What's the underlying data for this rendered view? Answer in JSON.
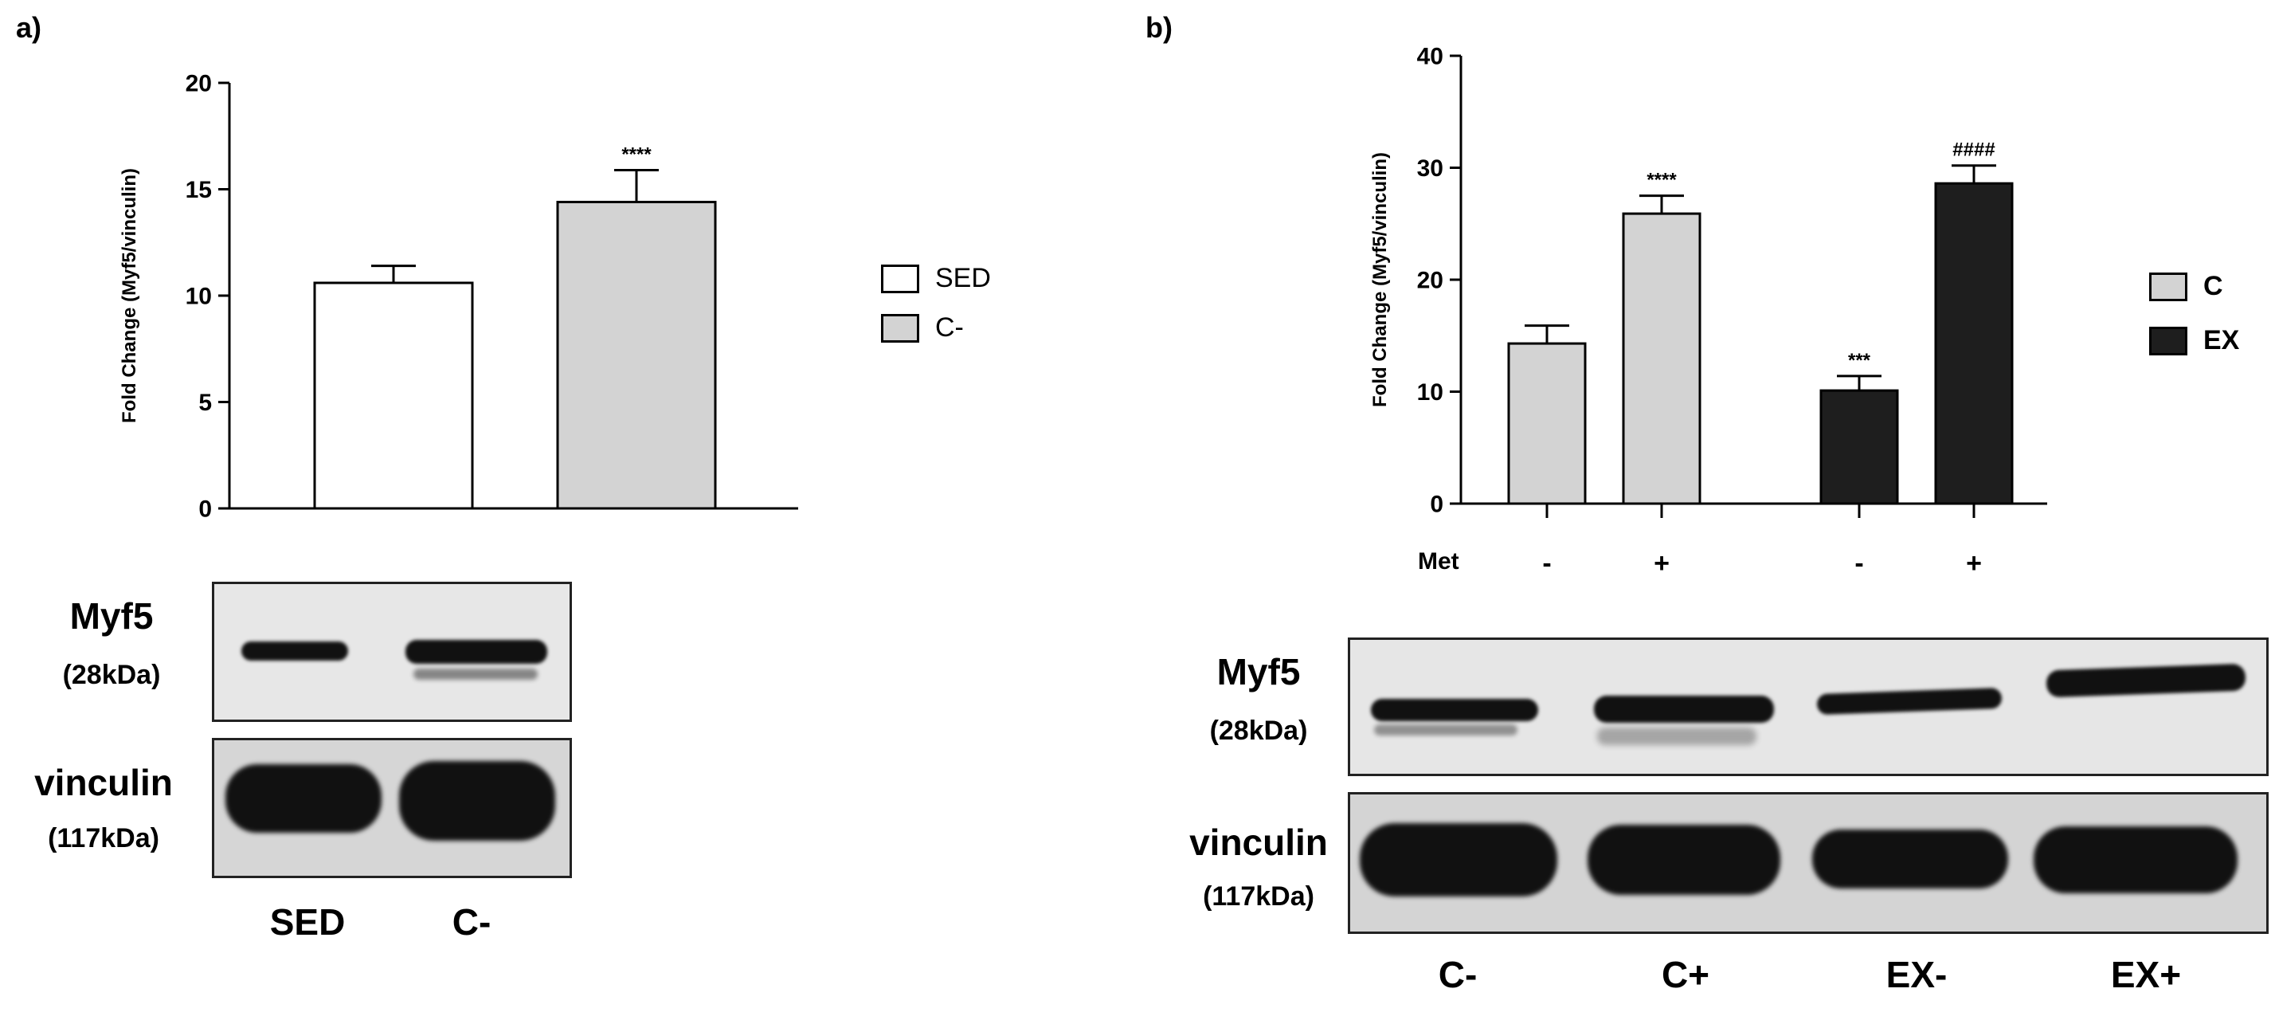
{
  "panels": {
    "a": {
      "letter": "a)",
      "blot": {
        "target": "Myf5",
        "target_kda": "(28kDa)",
        "loading": "vinculin",
        "loading_kda": "(117kDa)",
        "lanes": [
          "SED",
          "C-"
        ]
      }
    },
    "b": {
      "letter": "b)",
      "treatment_label": "Met",
      "treatment_signs": [
        "-",
        "+",
        "-",
        "+"
      ],
      "blot": {
        "target": "Myf5",
        "target_kda": "(28kDa)",
        "loading": "vinculin",
        "loading_kda": "(117kDa)",
        "lanes": [
          "C-",
          "C+",
          "EX-",
          "EX+"
        ]
      }
    }
  },
  "chart_data": [
    {
      "type": "bar",
      "title": "",
      "xlabel": "",
      "ylabel": "Fold Change (Myf5/vinculin)",
      "ylim": [
        0,
        20
      ],
      "yticks": [
        "0",
        "5",
        "10",
        "15",
        "20"
      ],
      "categories": [
        "SED",
        "C-"
      ],
      "values": [
        10.6,
        14.4
      ],
      "errors": [
        0.8,
        1.5
      ],
      "annotations": [
        "",
        "****"
      ],
      "colors": [
        "#ffffff",
        "#d3d3d3"
      ],
      "legend": [
        {
          "label": "SED",
          "color": "#ffffff"
        },
        {
          "label": "C-",
          "color": "#d3d3d3"
        }
      ],
      "legend_position": "right",
      "grid": false
    },
    {
      "type": "bar",
      "title": "",
      "xlabel": "",
      "ylabel": "Fold Change (Myf5/vinculin)",
      "ylim": [
        0,
        40
      ],
      "yticks": [
        "0",
        "10",
        "20",
        "30",
        "40"
      ],
      "categories": [
        "-",
        "+",
        "-",
        "+"
      ],
      "values": [
        14.3,
        25.9,
        10.1,
        28.6
      ],
      "errors": [
        1.6,
        1.6,
        1.3,
        1.6
      ],
      "annotations": [
        "",
        "****",
        "***",
        "####"
      ],
      "colors": [
        "#d3d3d3",
        "#d3d3d3",
        "#1e1e1e",
        "#1e1e1e"
      ],
      "legend": [
        {
          "label": "C",
          "color": "#d3d3d3"
        },
        {
          "label": "EX",
          "color": "#1e1e1e"
        }
      ],
      "legend_position": "right",
      "grid": false
    }
  ]
}
